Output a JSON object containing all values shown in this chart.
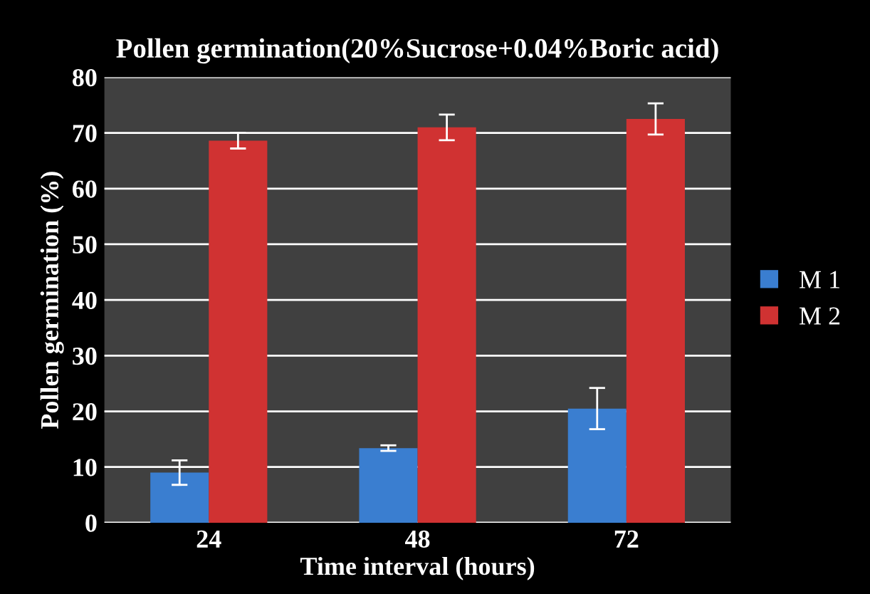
{
  "chart_data": {
    "type": "bar",
    "title": "Pollen germination(20%Sucrose+0.04%Boric acid)",
    "xlabel": "Time interval (hours)",
    "ylabel": "Pollen germination (%)",
    "categories": [
      "24",
      "48",
      "72"
    ],
    "series": [
      {
        "name": "M 1",
        "color": "#3a7ed0",
        "values": [
          9,
          13.4,
          20.5
        ],
        "errors": [
          2.2,
          0.5,
          3.7
        ]
      },
      {
        "name": "M 2",
        "color": "#d03232",
        "values": [
          68.6,
          71,
          72.5
        ],
        "errors": [
          1.4,
          2.3,
          2.8
        ]
      }
    ],
    "ylim": [
      0,
      80
    ],
    "yticks": [
      0,
      10,
      20,
      30,
      40,
      50,
      60,
      70,
      80
    ],
    "grid": "y",
    "legend": "right"
  }
}
